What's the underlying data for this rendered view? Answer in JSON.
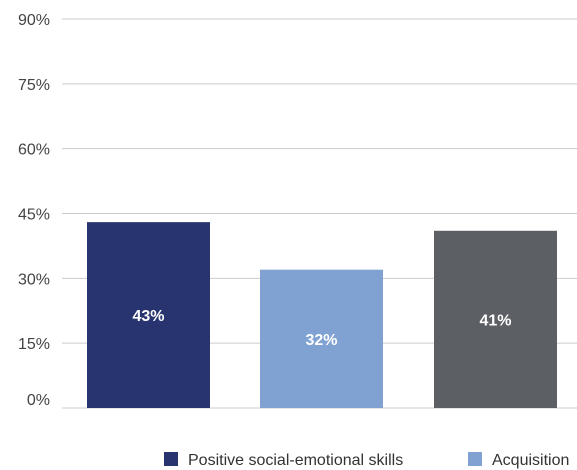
{
  "chart_data": {
    "type": "bar",
    "categories": [
      "Positive social-emotional skills",
      "Acquisition",
      ""
    ],
    "values": [
      43,
      32,
      41
    ],
    "data_labels": [
      "43%",
      "32%",
      "41%"
    ],
    "colors": [
      "#283470",
      "#7FA2D3",
      "#5C5F63"
    ],
    "ylim": [
      0,
      90
    ],
    "yticks": [
      0,
      15,
      30,
      45,
      60,
      75,
      90
    ],
    "ytick_labels": [
      "0%",
      "15%",
      "30%",
      "45%",
      "60%",
      "75%",
      "90%"
    ],
    "grid": true,
    "legend_placement": "bottom",
    "legend": [
      {
        "label": "Positive social-emotional skills",
        "color": "#283470"
      },
      {
        "label": "Acquisition",
        "color": "#7FA2D3"
      }
    ]
  }
}
